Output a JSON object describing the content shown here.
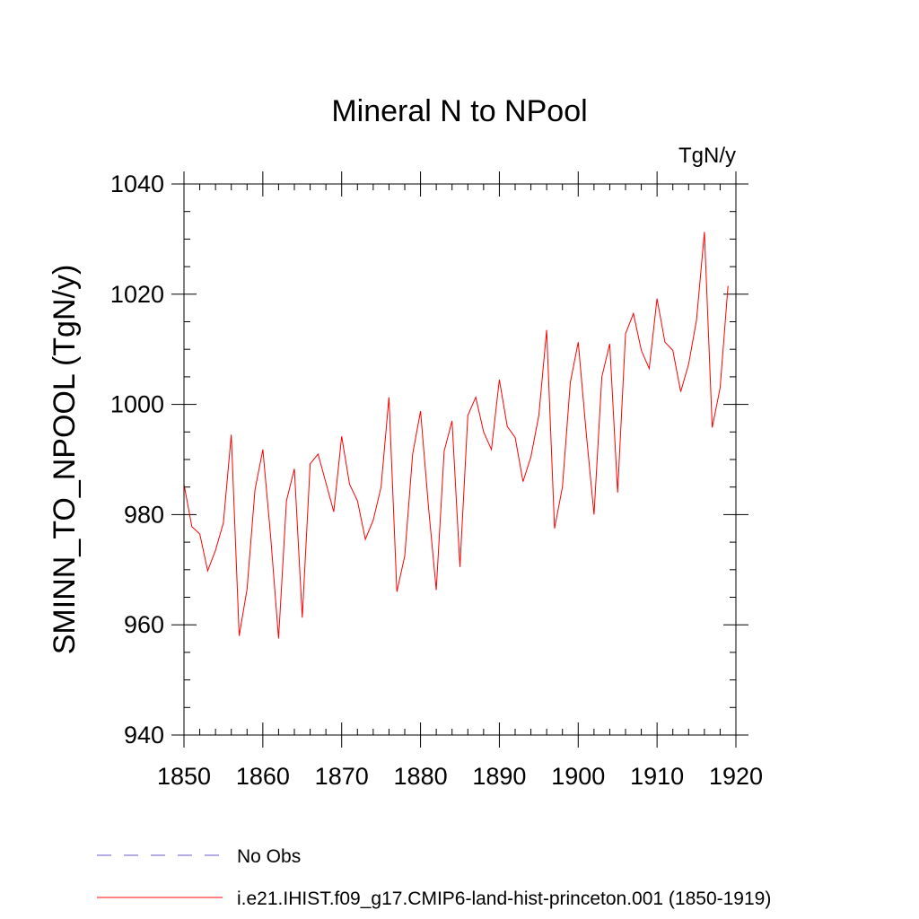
{
  "chart_data": {
    "type": "line",
    "title": "Mineral N to NPool",
    "units_label": "TgN/y",
    "xlabel": "",
    "ylabel": "SMINN_TO_NPOOL  (TgN/y)",
    "xlim": [
      1850,
      1920
    ],
    "ylim": [
      940,
      1040
    ],
    "xticks": [
      1850,
      1860,
      1870,
      1880,
      1890,
      1900,
      1910,
      1920
    ],
    "yticks": [
      940,
      960,
      980,
      1000,
      1020,
      1040
    ],
    "grid": false,
    "legend_position": "bottom-left",
    "series": [
      {
        "name": "i.e21.IHIST.f09_g17.CMIP6-land-hist-princeton.001 (1850-1919)",
        "color": "#ff0000",
        "dash": "solid",
        "x": [
          1850,
          1851,
          1852,
          1853,
          1854,
          1855,
          1856,
          1857,
          1858,
          1859,
          1860,
          1861,
          1862,
          1863,
          1864,
          1865,
          1866,
          1867,
          1868,
          1869,
          1870,
          1871,
          1872,
          1873,
          1874,
          1875,
          1876,
          1877,
          1878,
          1879,
          1880,
          1881,
          1882,
          1883,
          1884,
          1885,
          1886,
          1887,
          1888,
          1889,
          1890,
          1891,
          1892,
          1893,
          1894,
          1895,
          1896,
          1897,
          1898,
          1899,
          1900,
          1901,
          1902,
          1903,
          1904,
          1905,
          1906,
          1907,
          1908,
          1909,
          1910,
          1911,
          1912,
          1913,
          1914,
          1915,
          1916,
          1917,
          1918,
          1919
        ],
        "values": [
          985.5,
          977.8,
          976.5,
          969.8,
          973.5,
          978.5,
          994.5,
          958.0,
          966.5,
          984.5,
          991.8,
          976.0,
          957.5,
          982.5,
          988.3,
          961.3,
          989.2,
          991.0,
          985.8,
          980.5,
          994.2,
          985.5,
          982.5,
          975.5,
          979.0,
          985.0,
          1001.3,
          966.0,
          972.5,
          991.0,
          998.8,
          981.5,
          966.3,
          991.5,
          997.0,
          970.5,
          998.0,
          1001.3,
          995.0,
          991.8,
          1004.5,
          996.0,
          994.0,
          986.0,
          990.5,
          998.0,
          1013.5,
          977.5,
          985.0,
          1004.0,
          1011.3,
          995.0,
          980.0,
          1005.0,
          1011.0,
          984.0,
          1012.8,
          1016.5,
          1009.8,
          1006.5,
          1019.2,
          1011.3,
          1009.8,
          1002.3,
          1007.3,
          1015.3,
          1031.3,
          995.8,
          1003.0,
          1021.5
        ]
      },
      {
        "name": "No Obs",
        "color": "#6a5acd",
        "dash": "dashed",
        "x": [],
        "values": []
      }
    ]
  }
}
